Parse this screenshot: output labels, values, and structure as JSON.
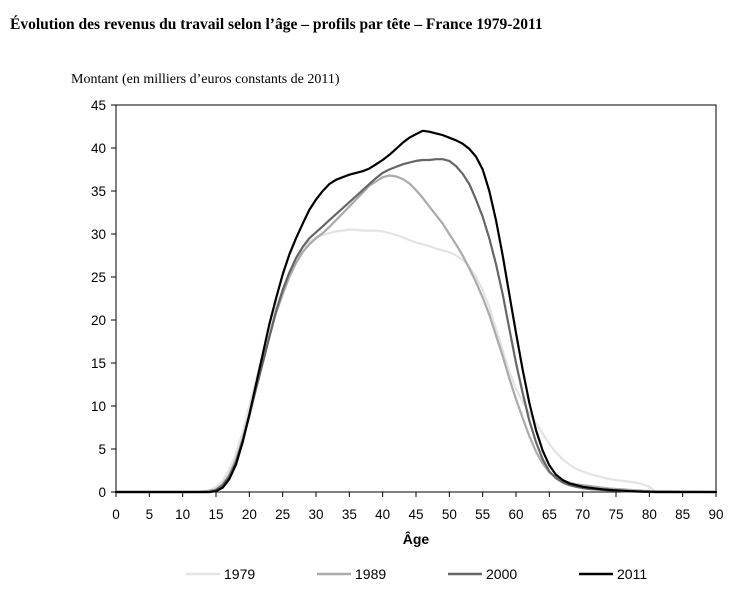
{
  "chart_data": {
    "type": "line",
    "title": "Évolution des revenus du travail selon l’âge – profils par tête – France 1979-2011",
    "ylabel": "Montant (en milliers d’euros constants de 2011)",
    "xlabel": "Âge",
    "xlim": [
      0,
      90
    ],
    "ylim": [
      0,
      45
    ],
    "xticks": [
      "0",
      "5",
      "10",
      "15",
      "20",
      "25",
      "30",
      "35",
      "40",
      "45",
      "50",
      "55",
      "60",
      "65",
      "70",
      "75",
      "80",
      "85",
      "90"
    ],
    "yticks": [
      "0",
      "5",
      "10",
      "15",
      "20",
      "25",
      "30",
      "35",
      "40",
      "45"
    ],
    "grid": false,
    "legend_position": "bottom",
    "series": [
      {
        "name": "1979",
        "color": "#e3e3e3",
        "x": [
          0,
          12,
          14,
          15,
          16,
          17,
          18,
          19,
          20,
          21,
          22,
          23,
          24,
          25,
          26,
          27,
          28,
          29,
          30,
          31,
          32,
          33,
          34,
          35,
          36,
          37,
          38,
          39,
          40,
          41,
          42,
          43,
          44,
          45,
          46,
          47,
          48,
          49,
          50,
          51,
          52,
          53,
          54,
          55,
          56,
          57,
          58,
          59,
          60,
          61,
          62,
          63,
          64,
          65,
          66,
          67,
          68,
          69,
          70,
          71,
          72,
          73,
          74,
          75,
          76,
          77,
          78,
          79,
          80,
          80.5,
          81,
          90
        ],
        "y": [
          0,
          0,
          0.2,
          0.6,
          1.3,
          2.6,
          4.5,
          7,
          10,
          13,
          16,
          19,
          21.5,
          23.5,
          25.5,
          27,
          28.3,
          29.1,
          29.6,
          29.9,
          30.1,
          30.3,
          30.4,
          30.5,
          30.5,
          30.4,
          30.4,
          30.4,
          30.3,
          30.1,
          29.9,
          29.6,
          29.3,
          29.0,
          28.8,
          28.6,
          28.3,
          28.1,
          27.9,
          27.5,
          27.0,
          26.2,
          25.0,
          23.5,
          21.5,
          19.0,
          16.5,
          14.0,
          12.0,
          10.5,
          9.2,
          8.0,
          6.8,
          5.6,
          4.6,
          3.8,
          3.2,
          2.7,
          2.4,
          2.1,
          1.9,
          1.7,
          1.5,
          1.4,
          1.3,
          1.2,
          1.1,
          0.9,
          0.6,
          0.3,
          0,
          0
        ]
      },
      {
        "name": "1989",
        "color": "#aaaaaa",
        "x": [
          0,
          13,
          15,
          16,
          17,
          18,
          19,
          20,
          21,
          22,
          23,
          24,
          25,
          26,
          27,
          28,
          29,
          30,
          31,
          32,
          33,
          34,
          35,
          36,
          37,
          38,
          39,
          40,
          41,
          42,
          43,
          44,
          45,
          46,
          47,
          48,
          49,
          50,
          51,
          52,
          53,
          54,
          55,
          56,
          57,
          58,
          59,
          60,
          61,
          62,
          63,
          64,
          65,
          66,
          67,
          68,
          69,
          70,
          71,
          72,
          73,
          74,
          75,
          76,
          77,
          78,
          79,
          80,
          90
        ],
        "y": [
          0,
          0,
          0.3,
          0.9,
          2.0,
          3.8,
          6.2,
          9.0,
          12.0,
          15.0,
          18.0,
          20.8,
          23.0,
          25.0,
          26.6,
          27.9,
          28.8,
          29.5,
          30.1,
          30.8,
          31.6,
          32.4,
          33.2,
          34.0,
          34.8,
          35.6,
          36.1,
          36.6,
          36.8,
          36.7,
          36.4,
          35.9,
          35.1,
          34.2,
          33.2,
          32.2,
          31.2,
          30.0,
          28.8,
          27.5,
          26.0,
          24.4,
          22.6,
          20.6,
          18.2,
          15.8,
          13.2,
          10.8,
          8.6,
          6.5,
          4.7,
          3.3,
          2.3,
          1.7,
          1.3,
          1.1,
          0.9,
          0.8,
          0.7,
          0.6,
          0.5,
          0.4,
          0.35,
          0.3,
          0.25,
          0.2,
          0.15,
          0.1,
          0
        ]
      },
      {
        "name": "2000",
        "color": "#666666",
        "x": [
          0,
          14,
          15,
          16,
          17,
          18,
          19,
          20,
          21,
          22,
          23,
          24,
          25,
          26,
          27,
          28,
          29,
          30,
          31,
          32,
          33,
          34,
          35,
          36,
          37,
          38,
          39,
          40,
          41,
          42,
          43,
          44,
          45,
          46,
          47,
          48,
          49,
          50,
          51,
          52,
          53,
          54,
          55,
          56,
          57,
          58,
          59,
          60,
          61,
          62,
          63,
          64,
          65,
          66,
          67,
          68,
          69,
          70,
          71,
          72,
          73,
          74,
          75,
          76,
          77,
          78,
          79,
          80,
          90
        ],
        "y": [
          0,
          0,
          0.2,
          0.8,
          1.8,
          3.5,
          6.0,
          8.8,
          12.0,
          15.0,
          18.0,
          21.0,
          23.5,
          25.5,
          27.2,
          28.5,
          29.5,
          30.2,
          30.9,
          31.6,
          32.3,
          33.0,
          33.7,
          34.4,
          35.1,
          35.8,
          36.5,
          37.1,
          37.5,
          37.8,
          38.1,
          38.3,
          38.5,
          38.6,
          38.6,
          38.7,
          38.7,
          38.5,
          37.9,
          37.0,
          35.8,
          34.0,
          32.0,
          29.5,
          26.5,
          23.0,
          19.0,
          15.0,
          11.5,
          8.3,
          5.8,
          3.8,
          2.4,
          1.6,
          1.1,
          0.8,
          0.6,
          0.45,
          0.35,
          0.3,
          0.25,
          0.2,
          0.15,
          0.1,
          0.08,
          0.05,
          0.03,
          0,
          0
        ]
      },
      {
        "name": "2011",
        "color": "#000000",
        "x": [
          0,
          14,
          15,
          16,
          17,
          18,
          19,
          20,
          21,
          22,
          23,
          24,
          25,
          26,
          27,
          28,
          29,
          30,
          31,
          32,
          33,
          34,
          35,
          36,
          37,
          38,
          39,
          40,
          41,
          42,
          43,
          44,
          45,
          46,
          47,
          48,
          49,
          50,
          51,
          52,
          53,
          54,
          55,
          56,
          57,
          58,
          59,
          60,
          61,
          62,
          63,
          64,
          65,
          66,
          67,
          68,
          69,
          70,
          71,
          72,
          73,
          74,
          75,
          76,
          77,
          78,
          79,
          80,
          81,
          90
        ],
        "y": [
          0,
          0,
          0.1,
          0.5,
          1.5,
          3.2,
          5.8,
          9.0,
          12.5,
          16.0,
          19.5,
          22.5,
          25.3,
          27.6,
          29.5,
          31.2,
          32.8,
          34.0,
          35.0,
          35.8,
          36.3,
          36.6,
          36.9,
          37.1,
          37.3,
          37.6,
          38.1,
          38.6,
          39.2,
          39.9,
          40.6,
          41.2,
          41.6,
          42.0,
          41.9,
          41.7,
          41.5,
          41.2,
          40.9,
          40.5,
          39.9,
          39.0,
          37.5,
          35.0,
          31.6,
          27.5,
          23.0,
          18.5,
          14.2,
          10.4,
          7.2,
          4.8,
          3.1,
          2.0,
          1.4,
          1.0,
          0.8,
          0.6,
          0.5,
          0.4,
          0.3,
          0.25,
          0.2,
          0.15,
          0.1,
          0.08,
          0.05,
          0.03,
          0,
          0
        ]
      }
    ]
  }
}
